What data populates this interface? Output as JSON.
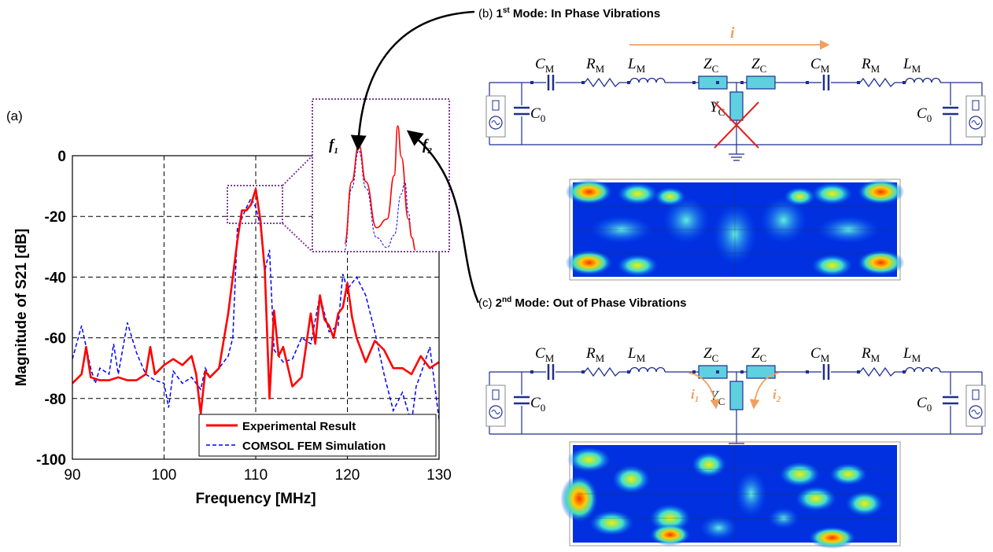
{
  "figure": {
    "panel_a": "(a)",
    "panel_b": {
      "prefix": "(b) ",
      "mode_num": "1",
      "sup": "st",
      "rest": " Mode: In Phase Vibrations"
    },
    "panel_c": {
      "prefix": "(c) ",
      "mode_num": "2",
      "sup": "nd",
      "rest": " Mode: Out of Phase Vibrations"
    },
    "inset": {
      "f1": "f",
      "f1_sub": "1",
      "f2": "f",
      "f2_sub": "2"
    },
    "circuit": {
      "CM": "C",
      "CM_sub": "M",
      "RM": "R",
      "RM_sub": "M",
      "LM": "L",
      "LM_sub": "M",
      "ZC": "Z",
      "ZC_sub": "C",
      "YC": "Y",
      "YC_sub": "C",
      "C0": "C",
      "C0_sub": "0",
      "current": "i",
      "i1": "i",
      "i1_sub": "1",
      "i2": "i",
      "i2_sub": "2"
    }
  },
  "colors": {
    "experimental": "#ff0000",
    "simulation": "#0000ff",
    "inset_box": "#7f3f98",
    "circuit": "#1f2f8f",
    "arrow_orange": "#f0a060",
    "element_fill": "#5fd0e0"
  },
  "chart_data": {
    "type": "line",
    "xlabel": "Frequency [MHz]",
    "ylabel": "Magnitude of S21 [dB]",
    "xlim": [
      90,
      130
    ],
    "ylim": [
      -100,
      0
    ],
    "xticks": [
      90,
      100,
      110,
      120,
      130
    ],
    "yticks": [
      0,
      -20,
      -40,
      -60,
      -80,
      -100
    ],
    "grid": true,
    "legend_position": "bottom-right",
    "series": [
      {
        "name": "Experimental Result",
        "style": "solid",
        "x": [
          90,
          91,
          91.5,
          92,
          93,
          94,
          95,
          96,
          97,
          98,
          98.5,
          99,
          100,
          101,
          102,
          103,
          103.5,
          104,
          104.5,
          105,
          106,
          107,
          108,
          108.5,
          109,
          109.5,
          110,
          110.5,
          111,
          111.5,
          112,
          112.5,
          113,
          114,
          115,
          116,
          116.5,
          117,
          117.5,
          118,
          118.5,
          119,
          119.5,
          120,
          120.5,
          121,
          122,
          123,
          124,
          125,
          126,
          127,
          128,
          129,
          130
        ],
        "y": [
          -75,
          -72,
          -63,
          -73,
          -74,
          -74,
          -73,
          -74,
          -74,
          -72,
          -63,
          -72,
          -69,
          -67,
          -69,
          -66,
          -72,
          -85,
          -71,
          -73,
          -70,
          -52,
          -28,
          -18,
          -18,
          -16,
          -11,
          -21,
          -38,
          -80,
          -51,
          -66,
          -63,
          -76,
          -73,
          -52,
          -62,
          -46,
          -54,
          -56,
          -60,
          -52,
          -50,
          -42,
          -53,
          -60,
          -68,
          -61,
          -64,
          -70,
          -70,
          -72,
          -66,
          -70,
          -68
        ]
      },
      {
        "name": "COMSOL FEM Simulation",
        "style": "dashed",
        "x": [
          90,
          91,
          92,
          92.5,
          93,
          94,
          94.5,
          95,
          96,
          97,
          98,
          99,
          100,
          100.5,
          101,
          102,
          103,
          104,
          104.5,
          105,
          106,
          107,
          107.5,
          108,
          109,
          109.5,
          110,
          110.5,
          111,
          111.5,
          112,
          113,
          114,
          115,
          116,
          117,
          118,
          119,
          119.5,
          120,
          121,
          122,
          123,
          124,
          125,
          126,
          127,
          127.5,
          128,
          129,
          130
        ],
        "y": [
          -67,
          -56,
          -70,
          -75,
          -70,
          -72,
          -62,
          -72,
          -55,
          -65,
          -72,
          -74,
          -75,
          -83,
          -71,
          -75,
          -73,
          -77,
          -70,
          -73,
          -70,
          -66,
          -60,
          -24,
          -17,
          -14,
          -17,
          -23,
          -38,
          -31,
          -64,
          -68,
          -67,
          -60,
          -62,
          -46,
          -58,
          -56,
          -39,
          -44,
          -40,
          -46,
          -58,
          -72,
          -84,
          -78,
          -88,
          -76,
          -72,
          -63,
          -87
        ]
      }
    ],
    "inset": {
      "type": "line",
      "series": [
        {
          "name": "Experimental Result",
          "x": [
            0,
            0.1,
            0.2,
            0.3,
            0.45,
            0.6,
            0.7,
            0.75,
            0.8,
            0.9,
            0.95,
            1.0
          ],
          "y": [
            0.05,
            0.55,
            0.85,
            0.55,
            0.18,
            0.25,
            0.6,
            1.0,
            0.75,
            0.25,
            0.1,
            0.0
          ]
        },
        {
          "name": "COMSOL FEM Simulation",
          "x": [
            0,
            0.1,
            0.2,
            0.3,
            0.45,
            0.6,
            0.7,
            0.8,
            0.85,
            0.9,
            0.95,
            1.0
          ],
          "y": [
            0.0,
            0.5,
            0.8,
            0.5,
            0.1,
            0.02,
            0.12,
            0.45,
            0.55,
            0.3,
            0.1,
            0.0
          ]
        }
      ]
    }
  }
}
